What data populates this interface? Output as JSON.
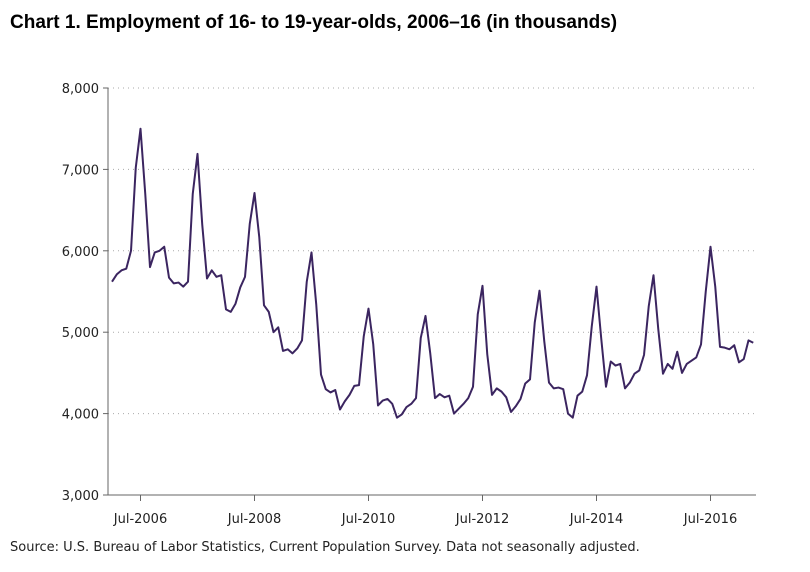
{
  "title": "Chart 1. Employment of 16- to 19-year-olds, 2006–16 (in thousands)",
  "source": "Source: U.S. Bureau of Labor Statistics, Current Population Survey. Data not seasonally adjusted.",
  "chart_data": {
    "type": "line",
    "xlabel": "",
    "ylabel": "",
    "ylim": [
      3000,
      8000
    ],
    "yticks": [
      3000,
      4000,
      5000,
      6000,
      7000,
      8000
    ],
    "ytick_labels": [
      "3,000",
      "4,000",
      "5,000",
      "6,000",
      "7,000",
      "8,000"
    ],
    "xticks": [
      {
        "date": "2006-07",
        "label": "Jul-2006"
      },
      {
        "date": "2008-07",
        "label": "Jul-2008"
      },
      {
        "date": "2010-07",
        "label": "Jul-2010"
      },
      {
        "date": "2012-07",
        "label": "Jul-2012"
      },
      {
        "date": "2014-07",
        "label": "Jul-2014"
      },
      {
        "date": "2016-07",
        "label": "Jul-2016"
      }
    ],
    "x_start": "2006-01",
    "x_end": "2016-12",
    "grid": "horizontal dotted",
    "line_color": "#3b2560",
    "series": [
      {
        "values": [
          5620,
          5710,
          5760,
          5780,
          6000,
          7020,
          7500,
          6700,
          5800,
          5980,
          6000,
          6050,
          5670,
          5600,
          5610,
          5560,
          5620,
          6700,
          7190,
          6320,
          5660,
          5760,
          5680,
          5700,
          5280,
          5250,
          5350,
          5550,
          5680,
          6330,
          6710,
          6170,
          5330,
          5250,
          5000,
          5060,
          4770,
          4790,
          4740,
          4800,
          4900,
          5620,
          5980,
          5340,
          4480,
          4300,
          4260,
          4290,
          4050,
          4150,
          4230,
          4340,
          4350,
          4950,
          5290,
          4850,
          4100,
          4160,
          4180,
          4120,
          3950,
          3990,
          4080,
          4120,
          4190,
          4930,
          5200,
          4740,
          4190,
          4240,
          4200,
          4220,
          4000,
          4060,
          4120,
          4190,
          4330,
          5220,
          5570,
          4730,
          4230,
          4310,
          4270,
          4200,
          4020,
          4090,
          4180,
          4370,
          4420,
          5120,
          5510,
          4890,
          4380,
          4310,
          4320,
          4300,
          4000,
          3950,
          4220,
          4270,
          4470,
          5070,
          5560,
          4920,
          4330,
          4640,
          4590,
          4610,
          4310,
          4380,
          4490,
          4530,
          4720,
          5320,
          5700,
          5040,
          4490,
          4610,
          4550,
          4760,
          4500,
          4610,
          4650,
          4690,
          4850,
          5500,
          6050,
          5560,
          4820,
          4810,
          4790,
          4840,
          4630,
          4670,
          4900,
          4870
        ]
      }
    ]
  }
}
